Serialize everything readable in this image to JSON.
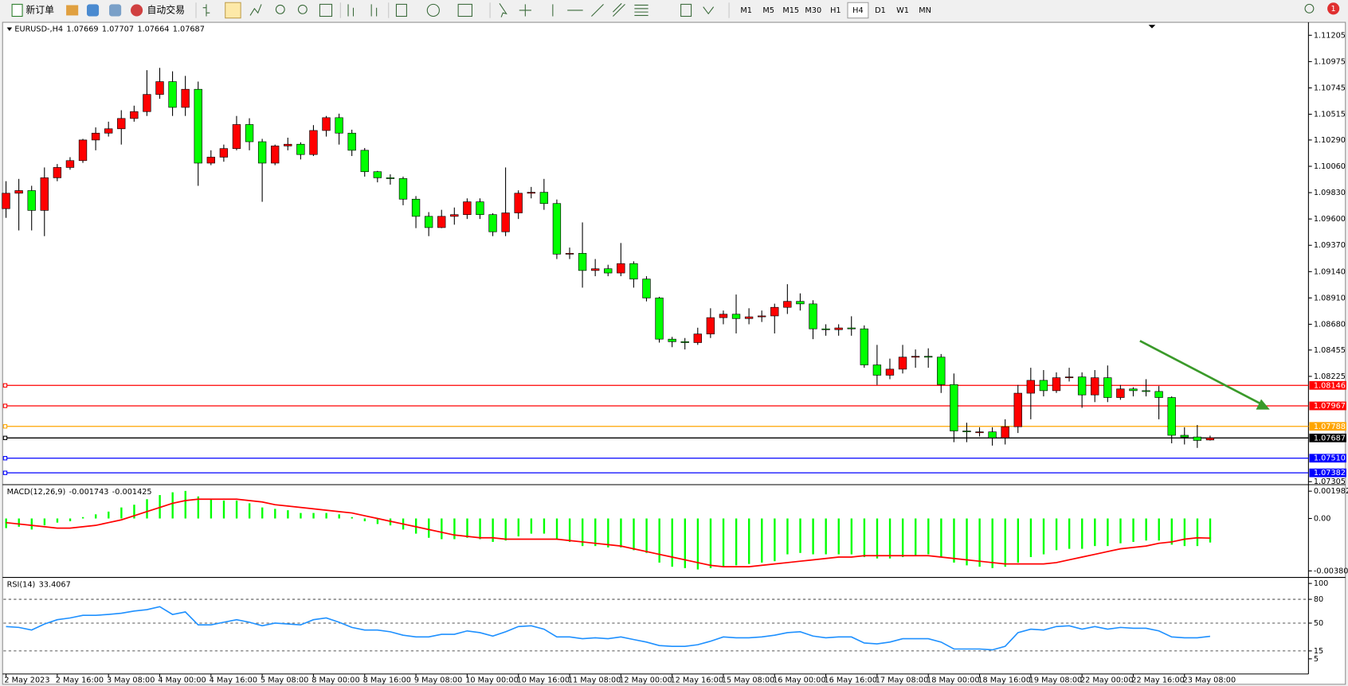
{
  "toolbar": {
    "new_order": "新订单",
    "auto_trade": "自动交易",
    "timeframes": [
      "M1",
      "M5",
      "M15",
      "M30",
      "H1",
      "H4",
      "D1",
      "W1",
      "MN"
    ],
    "active_timeframe": "H4",
    "notifications": 1
  },
  "chart_data": [
    {
      "type": "candlestick",
      "symbol": "EURUSD-,H4",
      "up_color": "#ff0000",
      "down_color": "#00ff00",
      "categories": [
        "2 May 2023",
        null,
        null,
        null,
        "2 May 16:00",
        null,
        null,
        null,
        "3 May 08:00",
        null,
        null,
        null,
        "4 May 00:00",
        null,
        null,
        null,
        "4 May 16:00",
        null,
        null,
        null,
        "5 May 08:00",
        null,
        null,
        null,
        "8 May 00:00",
        null,
        null,
        null,
        "8 May 16:00",
        null,
        null,
        null,
        "9 May 08:00",
        null,
        null,
        null,
        "10 May 00:00",
        null,
        null,
        null,
        "10 May 16:00",
        null,
        null,
        null,
        "11 May 08:00",
        null,
        null,
        null,
        "12 May 00:00",
        null,
        null,
        null,
        "12 May 16:00",
        null,
        null,
        null,
        "15 May 08:00",
        null,
        null,
        null,
        "16 May 00:00",
        null,
        null,
        null,
        "16 May 16:00",
        null,
        null,
        null,
        "17 May 08:00",
        null,
        null,
        null,
        "18 May 00:00",
        null,
        null,
        null,
        "18 May 16:00",
        null,
        null,
        null,
        "19 May 08:00",
        null,
        null,
        null,
        "22 May 00:00",
        null,
        null,
        null,
        "22 May 16:00",
        null,
        null,
        null,
        "23 May 08:00",
        null,
        null
      ],
      "open": [
        1.0969,
        1.09825,
        1.09848,
        1.09675,
        1.0996,
        1.1005,
        1.1011,
        1.1029,
        1.1035,
        1.10388,
        1.10478,
        1.10538,
        1.10688,
        1.108,
        1.10575,
        1.10733,
        1.10088,
        1.1014,
        1.10215,
        1.10425,
        1.10275,
        1.10088,
        1.10238,
        1.10253,
        1.10163,
        1.10373,
        1.10485,
        1.1035,
        1.102,
        1.10013,
        1.0996,
        1.09953,
        1.09773,
        1.09623,
        1.09525,
        1.09623,
        1.09638,
        1.0975,
        1.09638,
        1.09488,
        1.09653,
        1.09825,
        1.09833,
        1.09735,
        1.09293,
        1.093,
        1.0915,
        1.09165,
        1.09128,
        1.0921,
        1.09075,
        1.0891,
        1.0855,
        1.08528,
        1.0852,
        1.08595,
        1.08738,
        1.08768,
        1.0873,
        1.08745,
        1.08753,
        1.08828,
        1.0888,
        1.08858,
        1.0864,
        1.08633,
        1.08648,
        1.0864,
        1.08325,
        1.08235,
        1.08288,
        1.08393,
        1.084,
        1.08393,
        1.08153,
        1.07748,
        1.0774,
        1.0774,
        1.07688,
        1.07785,
        1.08078,
        1.0819,
        1.081,
        1.08213,
        1.0822,
        1.08063,
        1.08213,
        1.0804,
        1.08115,
        1.081,
        1.08093,
        1.0804,
        1.0771,
        1.07695,
        1.07669
      ],
      "high": [
        1.0993,
        1.0995,
        1.0989,
        1.1005,
        1.1008,
        1.1014,
        1.103,
        1.104,
        1.1045,
        1.1055,
        1.1059,
        1.109,
        1.1092,
        1.1089,
        1.1085,
        1.108,
        1.102,
        1.1025,
        1.105,
        1.1048,
        1.103,
        1.1025,
        1.1031,
        1.1027,
        1.1042,
        1.105,
        1.1052,
        1.1038,
        1.1022,
        1.1002,
        1.0999,
        1.0997,
        1.098,
        1.0966,
        1.0968,
        1.097,
        1.0978,
        1.0978,
        1.0965,
        1.1005,
        1.0985,
        1.0988,
        1.0995,
        1.0977,
        1.0935,
        1.0957,
        1.0925,
        1.092,
        1.0939,
        1.0923,
        1.091,
        1.0892,
        1.0857,
        1.0856,
        1.0865,
        1.0882,
        1.088,
        1.0894,
        1.0882,
        1.088,
        1.0886,
        1.0903,
        1.0895,
        1.0889,
        1.0868,
        1.0868,
        1.0875,
        1.0867,
        1.085,
        1.0838,
        1.085,
        1.0846,
        1.0847,
        1.0842,
        1.0825,
        1.0782,
        1.0778,
        1.0778,
        1.0785,
        1.0815,
        1.083,
        1.0828,
        1.0826,
        1.083,
        1.0826,
        1.0828,
        1.0832,
        1.0815,
        1.0813,
        1.082,
        1.0814,
        1.0805,
        1.0778,
        1.078,
        1.07707
      ],
      "low": [
        1.0961,
        1.095,
        1.095,
        1.0945,
        1.0993,
        1.1003,
        1.1009,
        1.102,
        1.1032,
        1.1025,
        1.1045,
        1.105,
        1.1065,
        1.105,
        1.105,
        1.0989,
        1.1007,
        1.101,
        1.102,
        1.102,
        1.0975,
        1.1007,
        1.102,
        1.1012,
        1.1015,
        1.1032,
        1.1025,
        1.1015,
        1.0997,
        1.0992,
        1.099,
        1.0972,
        1.0952,
        1.0945,
        1.0952,
        1.0955,
        1.096,
        1.096,
        1.0945,
        1.0945,
        1.096,
        1.0978,
        1.0968,
        1.0925,
        1.0925,
        1.09,
        1.091,
        1.091,
        1.091,
        1.09,
        1.0888,
        1.0852,
        1.0848,
        1.0846,
        1.085,
        1.0856,
        1.0868,
        1.086,
        1.0868,
        1.087,
        1.086,
        1.0877,
        1.088,
        1.0855,
        1.0858,
        1.0858,
        1.0858,
        1.083,
        1.0815,
        1.082,
        1.0825,
        1.083,
        1.083,
        1.0808,
        1.0765,
        1.0765,
        1.077,
        1.0762,
        1.0763,
        1.0773,
        1.0785,
        1.0805,
        1.0808,
        1.0818,
        1.0795,
        1.08,
        1.08,
        1.0802,
        1.0805,
        1.0805,
        1.0785,
        1.0764,
        1.0763,
        1.076,
        1.07664
      ],
      "close": [
        1.09825,
        1.09848,
        1.09675,
        1.0996,
        1.1005,
        1.1011,
        1.1029,
        1.1035,
        1.10388,
        1.10478,
        1.10538,
        1.10688,
        1.108,
        1.10575,
        1.10733,
        1.10088,
        1.1014,
        1.10215,
        1.10425,
        1.10275,
        1.10088,
        1.10238,
        1.10253,
        1.10163,
        1.10373,
        1.10485,
        1.1035,
        1.102,
        1.10013,
        1.0996,
        1.09953,
        1.09773,
        1.09623,
        1.09525,
        1.09623,
        1.09638,
        1.0975,
        1.09638,
        1.09488,
        1.09653,
        1.09825,
        1.09833,
        1.09735,
        1.09293,
        1.093,
        1.0915,
        1.09165,
        1.09128,
        1.0921,
        1.09075,
        1.0891,
        1.0855,
        1.08528,
        1.0852,
        1.08595,
        1.08738,
        1.08768,
        1.0873,
        1.08745,
        1.08753,
        1.08828,
        1.0888,
        1.08858,
        1.0864,
        1.08633,
        1.08648,
        1.0864,
        1.08325,
        1.08235,
        1.08288,
        1.08393,
        1.084,
        1.08393,
        1.08153,
        1.07748,
        1.0774,
        1.0774,
        1.07688,
        1.07785,
        1.08078,
        1.0819,
        1.081,
        1.08213,
        1.0822,
        1.08063,
        1.08213,
        1.0804,
        1.08115,
        1.081,
        1.08093,
        1.0804,
        1.0771,
        1.07695,
        1.07665,
        1.07687
      ],
      "ylim": [
        1.0729,
        1.11303
      ],
      "yticks": [
        1.11205,
        1.10975,
        1.10745,
        1.10515,
        {
          "value": 1.1029,
          "label": "1.10290"
        },
        {
          "value": 1.1006,
          "label": "1.10060"
        },
        {
          "value": 1.0983,
          "label": "1.09830"
        },
        {
          "value": 1.096,
          "label": "1.09600"
        },
        {
          "value": 1.0937,
          "label": "1.09370"
        },
        {
          "value": 1.0914,
          "label": "1.09140"
        },
        {
          "value": 1.0891,
          "label": "1.08910"
        },
        {
          "value": 1.0868,
          "label": "1.08680"
        },
        1.08455,
        1.08225,
        1.07305
      ],
      "hlines": [
        {
          "value": 1.08146,
          "color": "#ff0000"
        },
        {
          "value": 1.07967,
          "color": "#ff0000"
        },
        {
          "value": 1.07788,
          "color": "#ffa500"
        },
        {
          "value": 1.07687,
          "color": "#000000"
        },
        {
          "value": 1.0751,
          "label": "1.07510",
          "color": "#0000ff"
        },
        {
          "value": 1.07382,
          "color": "#0000ff"
        }
      ]
    },
    {
      "type": "macd",
      "title": "MACD(12,26,9)",
      "histogram_color": "#00ff00",
      "signal_color": "#ff0000",
      "histogram": [
        -0.0007,
        -0.0006,
        -0.0008,
        -0.0005,
        -0.0003,
        -0.0002,
        0.0001,
        0.0003,
        0.0005,
        0.0008,
        0.001,
        0.0014,
        0.0017,
        0.0019,
        0.002,
        0.0016,
        0.0014,
        0.0013,
        0.0013,
        0.0011,
        0.0008,
        0.0007,
        0.0006,
        0.0004,
        0.0004,
        0.0004,
        0.0003,
        0.0001,
        -0.0002,
        -0.0004,
        -0.0005,
        -0.0008,
        -0.0011,
        -0.0014,
        -0.0015,
        -0.0015,
        -0.0014,
        -0.0015,
        -0.0017,
        -0.0016,
        -0.0013,
        -0.0011,
        -0.0011,
        -0.0015,
        -0.0017,
        -0.002,
        -0.002,
        -0.0021,
        -0.0021,
        -0.0023,
        -0.0025,
        -0.0032,
        -0.0035,
        -0.0036,
        -0.0037,
        -0.0036,
        -0.0035,
        -0.0034,
        -0.0033,
        -0.0032,
        -0.0031,
        -0.0026,
        -0.0025,
        -0.0026,
        -0.0026,
        -0.0026,
        -0.0026,
        -0.0028,
        -0.0029,
        -0.0029,
        -0.0028,
        -0.0027,
        -0.0026,
        -0.0028,
        -0.0032,
        -0.0034,
        -0.0035,
        -0.0036,
        -0.0035,
        -0.0032,
        -0.0028,
        -0.0026,
        -0.0023,
        -0.0022,
        -0.0022,
        -0.002,
        -0.002,
        -0.0018,
        -0.0017,
        -0.0016,
        -0.0016,
        -0.0019,
        -0.002,
        -0.002,
        -0.001743
      ],
      "signal": [
        -0.0003,
        -0.0004,
        -0.0005,
        -0.0006,
        -0.0007,
        -0.0007,
        -0.0006,
        -0.0005,
        -0.0003,
        -0.0001,
        0.0002,
        0.0005,
        0.0008,
        0.0011,
        0.0013,
        0.0014,
        0.0014,
        0.0014,
        0.0014,
        0.0013,
        0.0012,
        0.001,
        0.0009,
        0.0008,
        0.0007,
        0.0006,
        0.0005,
        0.0004,
        0.0002,
        0,
        -0.0002,
        -0.0004,
        -0.0006,
        -0.0008,
        -0.001,
        -0.0012,
        -0.0013,
        -0.0014,
        -0.0014,
        -0.0015,
        -0.0015,
        -0.0015,
        -0.0015,
        -0.0015,
        -0.0016,
        -0.0017,
        -0.0018,
        -0.0019,
        -0.002,
        -0.0022,
        -0.0024,
        -0.0026,
        -0.0028,
        -0.003,
        -0.0032,
        -0.0034,
        -0.0035,
        -0.0035,
        -0.0035,
        -0.0034,
        -0.0033,
        -0.0032,
        -0.0031,
        -0.003,
        -0.0029,
        -0.0028,
        -0.0028,
        -0.0027,
        -0.0027,
        -0.0027,
        -0.0027,
        -0.0027,
        -0.0027,
        -0.0028,
        -0.0029,
        -0.003,
        -0.0031,
        -0.0032,
        -0.0033,
        -0.0033,
        -0.0033,
        -0.0033,
        -0.0032,
        -0.003,
        -0.0028,
        -0.0026,
        -0.0024,
        -0.0022,
        -0.0021,
        -0.002,
        -0.0018,
        -0.0017,
        -0.0015,
        -0.0014,
        -0.001425
      ],
      "ylim": [
        -0.00418,
        0.00236
      ],
      "yticks": [
        0.001982,
        {
          "value": 0,
          "label": "0.00"
        },
        -0.003804
      ]
    },
    {
      "type": "line",
      "title": "RSI(14)",
      "color": "#1e90ff",
      "values": [
        45.7,
        44.6,
        41.3,
        48.9,
        54.3,
        56.5,
        59.8,
        59.8,
        61,
        62.5,
        65.2,
        67,
        70.7,
        60.9,
        64.1,
        47.8,
        47.8,
        51.1,
        54.3,
        51.1,
        46.7,
        50,
        48.9,
        47.8,
        54.3,
        56.5,
        51.1,
        44.6,
        41.3,
        41.3,
        39.1,
        34.8,
        32.6,
        32.6,
        35.9,
        35.9,
        40.2,
        38,
        33.7,
        39.1,
        45.7,
        46.7,
        42.4,
        32.6,
        32.6,
        30.4,
        31.5,
        30.4,
        32.6,
        29.3,
        26.1,
        21.7,
        20.7,
        20.7,
        22.8,
        27.2,
        32.6,
        31.5,
        31.5,
        32.6,
        34.8,
        38,
        39.1,
        33.7,
        31.5,
        32.6,
        32.6,
        25,
        23.9,
        26.1,
        30.4,
        30.4,
        30.4,
        26.1,
        17.4,
        17.4,
        17.4,
        16.3,
        20.7,
        38,
        42.4,
        41.3,
        45.7,
        46.7,
        42.4,
        45.7,
        42.4,
        44.6,
        43.5,
        43.5,
        40.2,
        32.6,
        31.5,
        31.5,
        33.4067
      ],
      "ylim": [
        -13,
        106
      ],
      "yticks": [
        100,
        80,
        50,
        15,
        5
      ],
      "levels": [
        80,
        50,
        15
      ]
    }
  ]
}
